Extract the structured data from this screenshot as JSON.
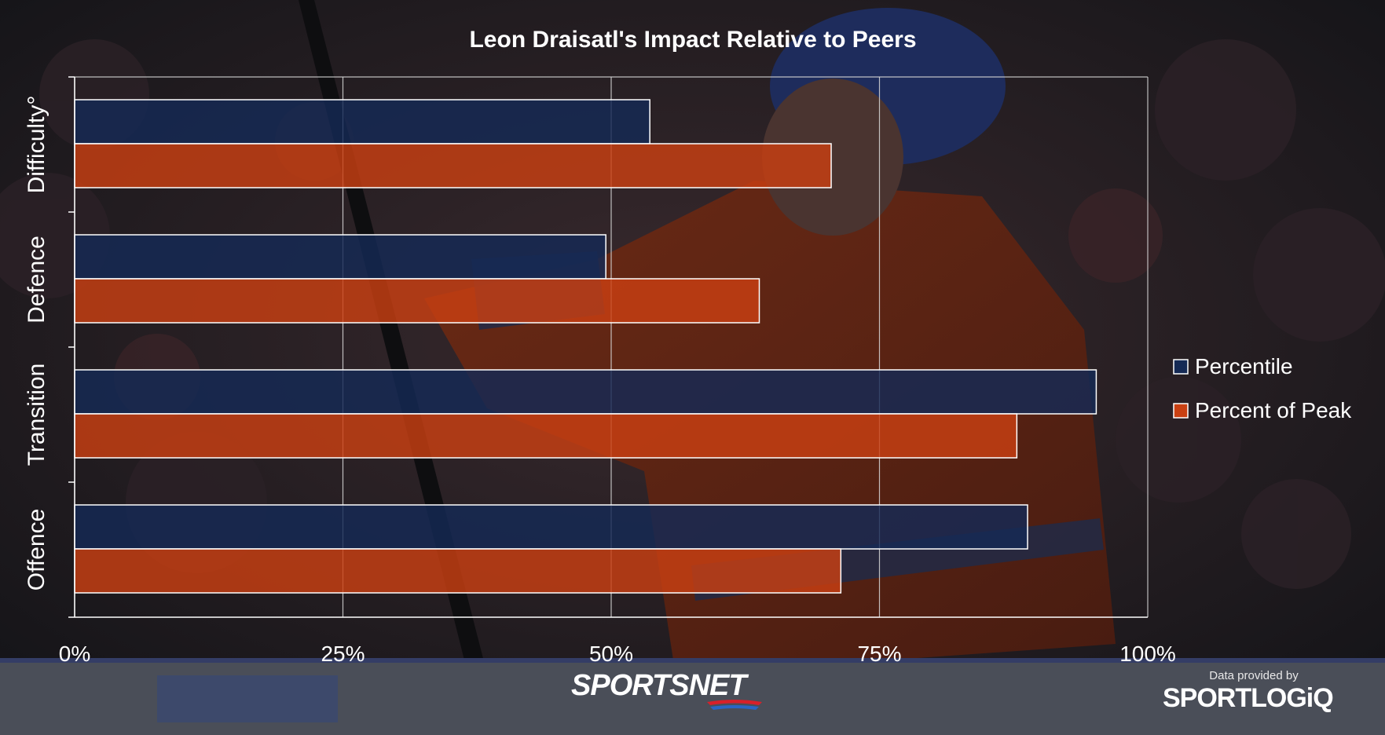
{
  "chart_data": {
    "type": "bar",
    "orientation": "horizontal",
    "title": "Leon Draisatl's Impact Relative to Peers",
    "categories": [
      "Difficulty°",
      "Defence",
      "Transition",
      "Offence"
    ],
    "series": [
      {
        "name": "Percentile",
        "values": [
          53.6,
          49.5,
          95.2,
          88.8
        ]
      },
      {
        "name": "Percent of Peak",
        "values": [
          70.5,
          63.8,
          87.8,
          71.4
        ]
      }
    ],
    "xlim": [
      0,
      100
    ],
    "xticks": [
      "0%",
      "25%",
      "50%",
      "75%",
      "100%"
    ],
    "xlabel": "",
    "ylabel": "",
    "grid": true,
    "legend": "right"
  },
  "colors": {
    "percentile": "#152a55",
    "percent_of_peak": "#c94012",
    "bar_outline": "#ffffff",
    "text": "#ffffff"
  },
  "branding": {
    "broadcaster": "SPORTSNET",
    "data_credit": "Data provided by",
    "data_provider": "SPORTLOGiQ"
  }
}
